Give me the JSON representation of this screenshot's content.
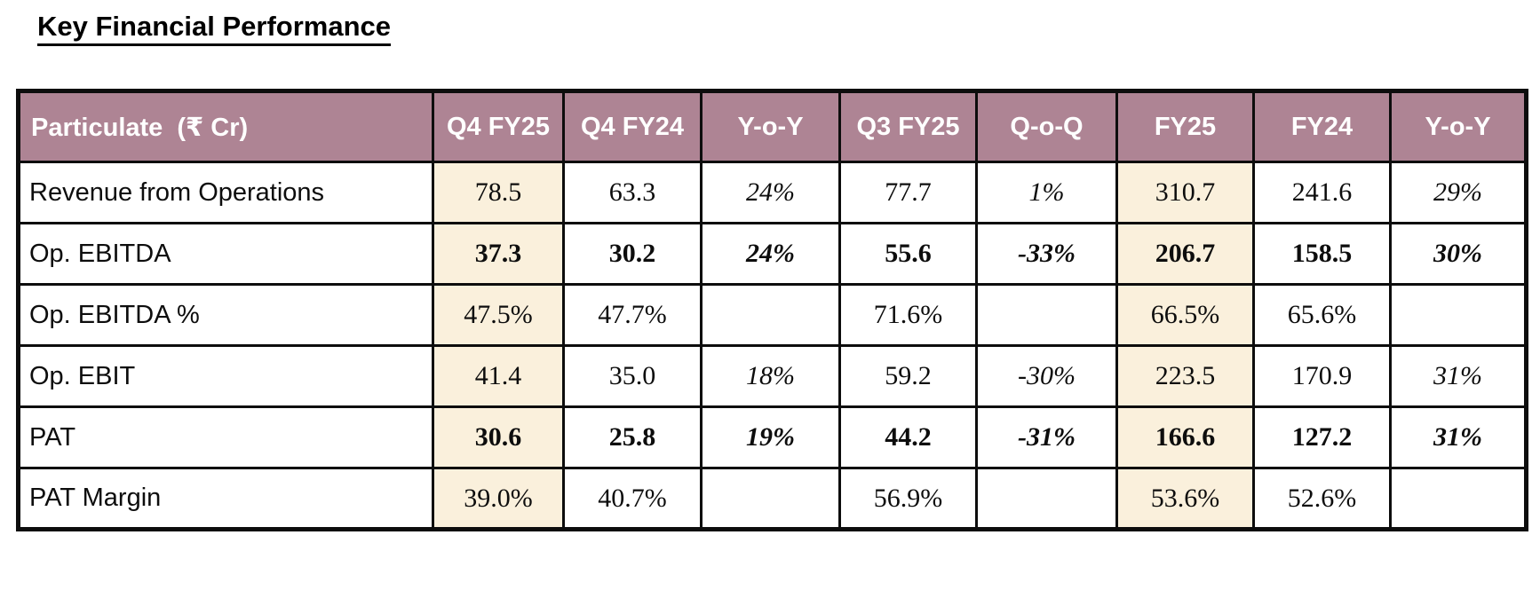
{
  "title": "Key Financial Performance",
  "colors": {
    "header_bg": "#ae8494",
    "header_text": "#ffffff",
    "highlight_bg": "#faf0dc",
    "border": "#0d0d0d",
    "page_bg": "#ffffff"
  },
  "table": {
    "columns": [
      {
        "label": "Particulate  (₹ Cr)",
        "align": "left",
        "highlight": false,
        "italic": false
      },
      {
        "label": "Q4 FY25",
        "align": "center",
        "highlight": true,
        "italic": false
      },
      {
        "label": "Q4 FY24",
        "align": "center",
        "highlight": false,
        "italic": false
      },
      {
        "label": "Y-o-Y",
        "align": "center",
        "highlight": false,
        "italic": true
      },
      {
        "label": "Q3 FY25",
        "align": "center",
        "highlight": false,
        "italic": false
      },
      {
        "label": "Q-o-Q",
        "align": "center",
        "highlight": false,
        "italic": true
      },
      {
        "label": "FY25",
        "align": "center",
        "highlight": true,
        "italic": false
      },
      {
        "label": "FY24",
        "align": "center",
        "highlight": false,
        "italic": false
      },
      {
        "label": "Y-o-Y",
        "align": "center",
        "highlight": false,
        "italic": true
      }
    ],
    "rows": [
      {
        "label": "Revenue from Operations",
        "bold": false,
        "values": [
          "78.5",
          "63.3",
          "24%",
          "77.7",
          "1%",
          "310.7",
          "241.6",
          "29%"
        ]
      },
      {
        "label": "Op. EBITDA",
        "bold": true,
        "values": [
          "37.3",
          "30.2",
          "24%",
          "55.6",
          "-33%",
          "206.7",
          "158.5",
          "30%"
        ]
      },
      {
        "label": "Op. EBITDA %",
        "bold": false,
        "values": [
          "47.5%",
          "47.7%",
          "",
          "71.6%",
          "",
          "66.5%",
          "65.6%",
          ""
        ]
      },
      {
        "label": "Op. EBIT",
        "bold": false,
        "values": [
          "41.4",
          "35.0",
          "18%",
          "59.2",
          "-30%",
          "223.5",
          "170.9",
          "31%"
        ]
      },
      {
        "label": "PAT",
        "bold": true,
        "values": [
          "30.6",
          "25.8",
          "19%",
          "44.2",
          "-31%",
          "166.6",
          "127.2",
          "31%"
        ]
      },
      {
        "label": "PAT Margin",
        "bold": false,
        "values": [
          "39.0%",
          "40.7%",
          "",
          "56.9%",
          "",
          "53.6%",
          "52.6%",
          ""
        ]
      }
    ]
  }
}
